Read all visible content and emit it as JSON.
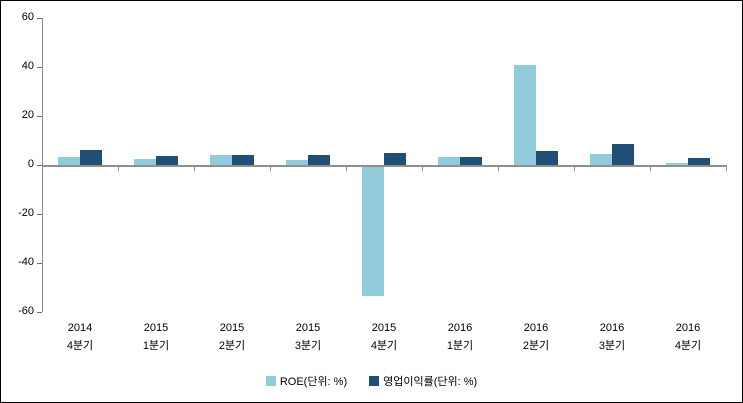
{
  "chart_data": {
    "type": "bar",
    "title": "",
    "xlabel": "",
    "ylabel": "",
    "categories": [
      "2014 4분기",
      "2015 1분기",
      "2015 2분기",
      "2015 3분기",
      "2015 4분기",
      "2016 1분기",
      "2016 2분기",
      "2016 3분기",
      "2016 4분기"
    ],
    "series": [
      {
        "name": "ROE(단위: %)",
        "color": "#92CBDB",
        "values": [
          3.4,
          2.6,
          4.2,
          2.1,
          -53.5,
          3.4,
          41.0,
          4.5,
          0.7
        ]
      },
      {
        "name": "영업이익률(단위: %)",
        "color": "#204E74",
        "values": [
          6.2,
          3.7,
          4.2,
          4.2,
          4.7,
          3.4,
          5.7,
          8.4,
          2.8
        ]
      }
    ],
    "ylim": [
      -60,
      60
    ],
    "yticks": [
      60,
      40,
      20,
      0,
      -20,
      -40,
      -60
    ],
    "grid": false,
    "legend_position": "bottom-center",
    "axis_color": "#8a8a8a",
    "text_color": "#000000",
    "background_color": "#ffffff"
  }
}
